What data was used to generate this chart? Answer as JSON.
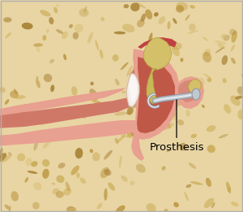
{
  "bg_bone_color": "#e8d5a3",
  "bone_pore_colors": [
    "#c8a850",
    "#b89038",
    "#d4b868",
    "#a07828"
  ],
  "skin_light": "#f0c0b0",
  "skin_mid": "#e8a090",
  "skin_dark": "#d07868",
  "cavity_dark": "#c05848",
  "cavity_mid": "#cc6858",
  "ossicle_color": "#d4c068",
  "ossicle_edge": "#b0a040",
  "tympanic_color": "#f5ece8",
  "tympanic_highlight": "#ffffff",
  "prosthesis_body": "#c0c8d0",
  "prosthesis_shine": "#e8ecf0",
  "prosthesis_shadow": "#9098a8",
  "annotation_text": "Prosthesis",
  "fig_width": 3.0,
  "fig_height": 2.61,
  "dpi": 100
}
